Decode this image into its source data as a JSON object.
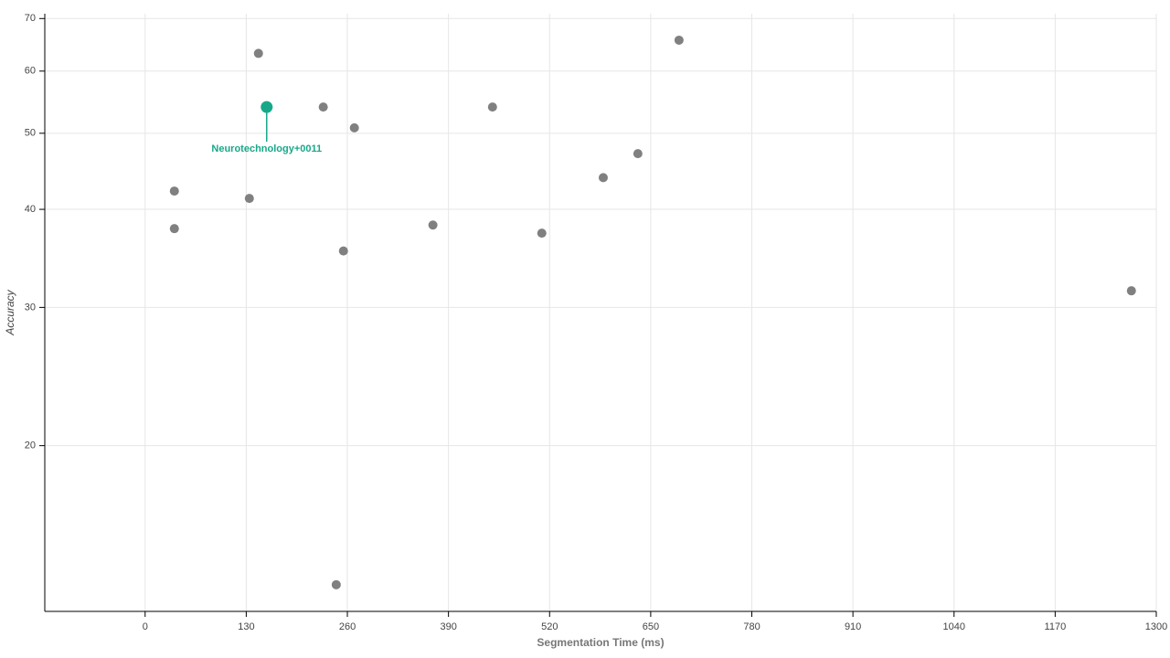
{
  "chart_data": {
    "type": "scatter",
    "x_label": "Segmentation Time (ms)",
    "y_label": "Accuracy",
    "x": [
      37.6,
      37.6,
      134,
      145.7,
      156.3,
      229,
      269,
      255,
      245.7,
      370,
      446.6,
      510,
      589,
      633.5,
      686.4,
      1268
    ],
    "values": [
      42.2,
      37.8,
      41.3,
      63.2,
      54.0,
      54.0,
      50.8,
      35.4,
      13.3,
      38.2,
      54.0,
      37.3,
      43.9,
      47.1,
      65.7,
      31.5
    ],
    "color": "#808080",
    "highlight": {
      "index": 4,
      "label": "Neurotechnology+0011",
      "color": "#17a88a"
    },
    "xlim": [
      -129,
      1300
    ],
    "ylim": [
      12.3,
      71
    ],
    "xticks": [
      0,
      130,
      260,
      390,
      520,
      650,
      780,
      910,
      1040,
      1170,
      1300
    ],
    "yticks": [
      20,
      30,
      40,
      50,
      60,
      70
    ],
    "y_log": true,
    "grid": true
  }
}
